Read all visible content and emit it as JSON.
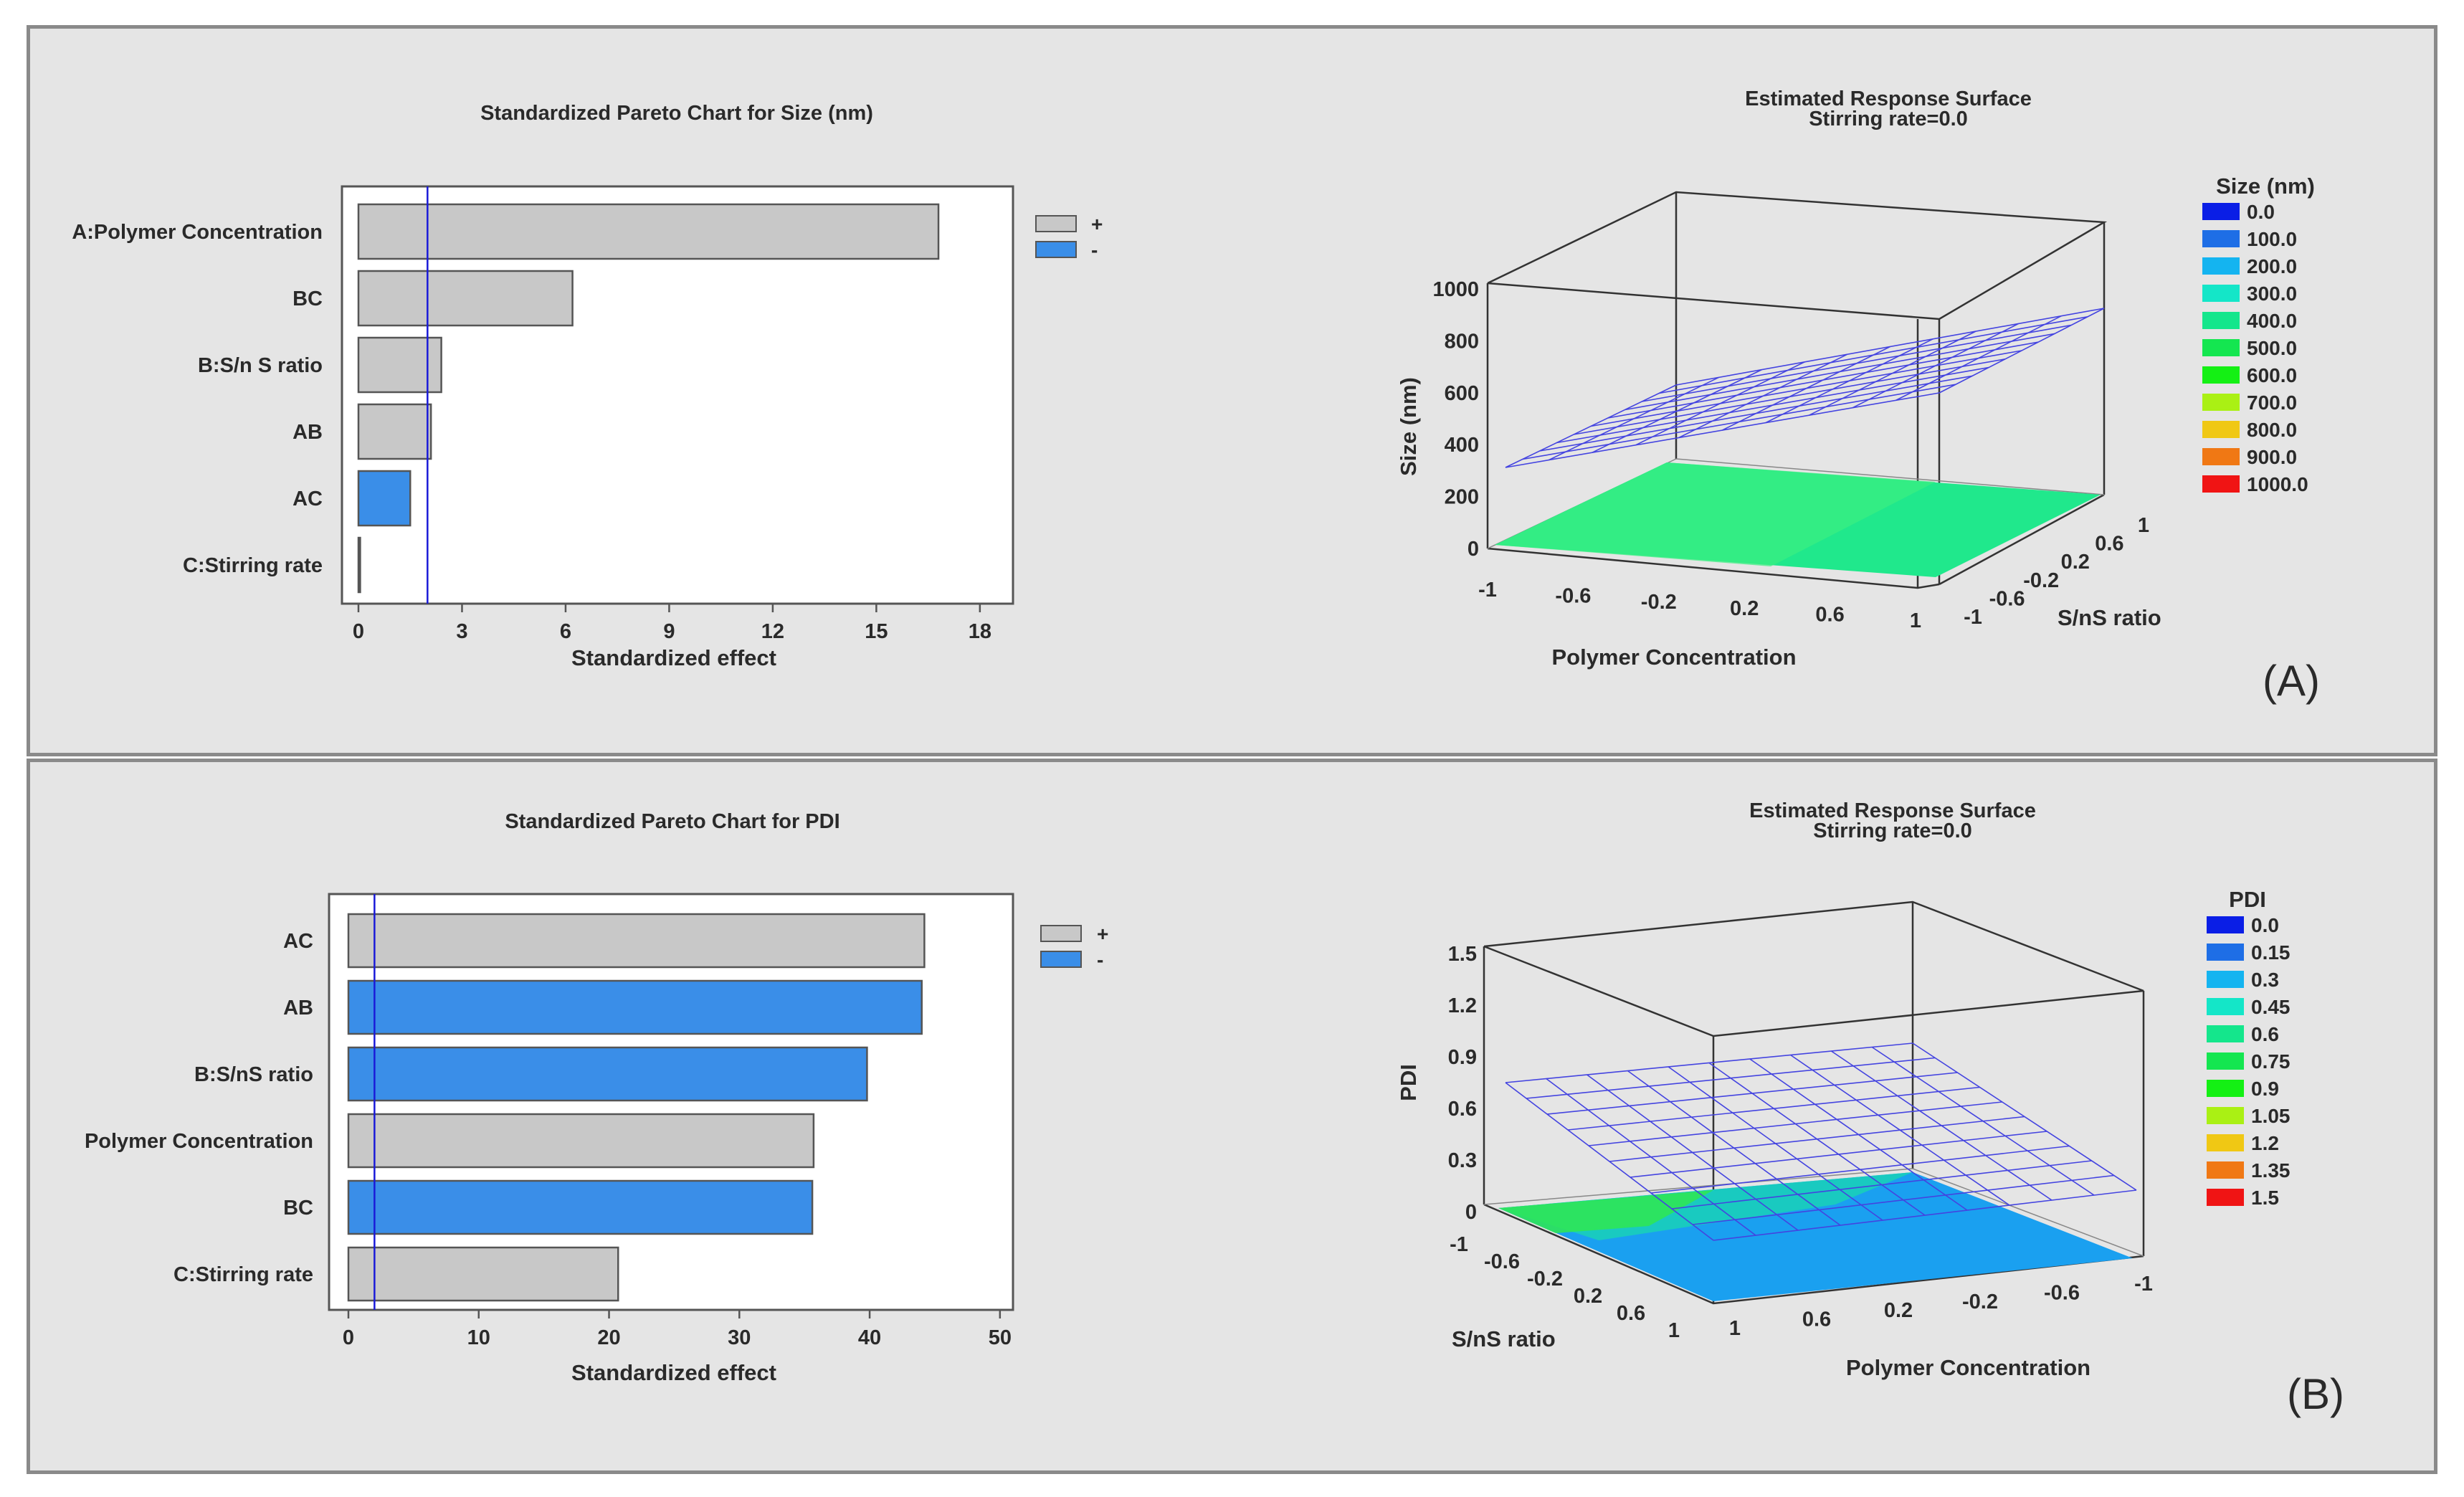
{
  "colors": {
    "positive": "#c8c8c8",
    "negative": "#3a8ee8",
    "refline": "#1a1ad8",
    "mesh": "#4444e0"
  },
  "panels": [
    {
      "label": "(A)"
    },
    {
      "label": "(B)"
    }
  ],
  "chart_data": [
    {
      "type": "bar",
      "orientation": "horizontal",
      "title": "Standardized Pareto Chart for Size (nm)",
      "xlabel": "Standardized effect",
      "ylabel": "",
      "categories": [
        "A:Polymer Concentration",
        "BC",
        "B:S/n S ratio",
        "AB",
        "AC",
        "C:Stirring rate"
      ],
      "values": [
        16.8,
        6.2,
        2.4,
        2.1,
        1.5,
        0.05
      ],
      "signs": [
        "+",
        "+",
        "+",
        "+",
        "-",
        "+"
      ],
      "xlim": [
        0,
        19
      ],
      "xticks": [
        0,
        3,
        6,
        9,
        12,
        15,
        18
      ],
      "reference_line": 2.0,
      "legend": {
        "position": "right",
        "entries": [
          "+",
          "-"
        ]
      }
    },
    {
      "type": "surface",
      "title": "Estimated Response Surface",
      "subtitle": "Stirring rate=0.0",
      "xlabel": "Polymer Concentration",
      "ylabel": "S/nS ratio",
      "zlabel": "Size (nm)",
      "xticks": [
        "-1",
        "-0.6",
        "-0.2",
        "0.2",
        "0.6",
        "1"
      ],
      "yticks": [
        "-1",
        "-0.6",
        "-0.2",
        "0.2",
        "0.6",
        "1"
      ],
      "zticks": [
        "0",
        "200",
        "400",
        "600",
        "800",
        "1000"
      ],
      "zlim": [
        0,
        1000
      ],
      "legend_title": "Size (nm)",
      "legend_levels": [
        "0.0",
        "100.0",
        "200.0",
        "300.0",
        "400.0",
        "500.0",
        "600.0",
        "700.0",
        "800.0",
        "900.0",
        "1000.0"
      ],
      "legend_colors": [
        "#0a1ee6",
        "#1e6ee6",
        "#14b4f0",
        "#14e6c8",
        "#14e68c",
        "#14e650",
        "#14f014",
        "#aaf014",
        "#f0c814",
        "#f07814",
        "#f01414"
      ]
    },
    {
      "type": "bar",
      "orientation": "horizontal",
      "title": "Standardized Pareto Chart for PDI",
      "xlabel": "Standardized effect",
      "ylabel": "",
      "categories": [
        "AC",
        "AB",
        "B:S/nS ratio",
        "Polymer Concentration",
        "BC",
        "C:Stirring rate"
      ],
      "values": [
        44.2,
        44.0,
        39.8,
        35.7,
        35.6,
        20.7
      ],
      "signs": [
        "+",
        "-",
        "-",
        "+",
        "-",
        "+"
      ],
      "xlim": [
        0,
        51
      ],
      "xticks": [
        0,
        10,
        20,
        30,
        40,
        50
      ],
      "reference_line": 2.0,
      "legend": {
        "position": "right",
        "entries": [
          "+",
          "-"
        ]
      }
    },
    {
      "type": "surface",
      "title": "Estimated Response Surface",
      "subtitle": "Stirring rate=0.0",
      "xlabel": "S/nS ratio",
      "ylabel": "Polymer Concentration",
      "zlabel": "PDI",
      "xticks": [
        "-1",
        "-0.6",
        "-0.2",
        "0.2",
        "0.6",
        "1"
      ],
      "yticks": [
        "1",
        "0.6",
        "0.2",
        "-0.2",
        "-0.6",
        "-1"
      ],
      "zticks": [
        "0",
        "0.3",
        "0.6",
        "0.9",
        "1.2",
        "1.5"
      ],
      "zlim": [
        0,
        1.5
      ],
      "legend_title": "PDI",
      "legend_levels": [
        "0.0",
        "0.15",
        "0.3",
        "0.45",
        "0.6",
        "0.75",
        "0.9",
        "1.05",
        "1.2",
        "1.35",
        "1.5"
      ],
      "legend_colors": [
        "#0a1ee6",
        "#1e6ee6",
        "#14b4f0",
        "#14e6c8",
        "#14e68c",
        "#14e650",
        "#14f014",
        "#aaf014",
        "#f0c814",
        "#f07814",
        "#f01414"
      ]
    }
  ]
}
